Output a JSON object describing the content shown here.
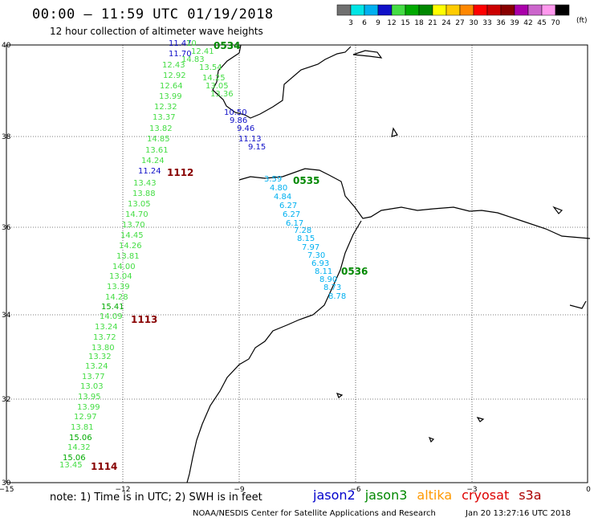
{
  "title": "00:00 – 11:59 UTC 01/19/2018",
  "subtitle": "12 hour collection of altimeter wave heights",
  "note": "note: 1) Time is in UTC; 2) SWH is in feet",
  "credit": "NOAA/NESDIS Center for Satellite Applications and Research",
  "timestamp": "Jan 20 13:27:16 UTC 2018",
  "scale": {
    "unit": "(ft)",
    "bins": [
      {
        "label": "3",
        "color": "#707070"
      },
      {
        "label": "6",
        "color": "#00e5e5"
      },
      {
        "label": "9",
        "color": "#00b0f0"
      },
      {
        "label": "12",
        "color": "#1010c8"
      },
      {
        "label": "15",
        "color": "#44dd44"
      },
      {
        "label": "18",
        "color": "#00aa00"
      },
      {
        "label": "21",
        "color": "#008800"
      },
      {
        "label": "24",
        "color": "#ffff00"
      },
      {
        "label": "27",
        "color": "#ffcc00"
      },
      {
        "label": "30",
        "color": "#ff8800"
      },
      {
        "label": "33",
        "color": "#ff0000"
      },
      {
        "label": "36",
        "color": "#cc0000"
      },
      {
        "label": "39",
        "color": "#880000"
      },
      {
        "label": "42",
        "color": "#aa00aa"
      },
      {
        "label": "45",
        "color": "#cc66cc"
      },
      {
        "label": "70",
        "color": "#ff99ee"
      },
      {
        "label": "",
        "color": "#000000"
      }
    ]
  },
  "satellites": [
    {
      "name": "jason2",
      "color": "#0000cc"
    },
    {
      "name": "jason3",
      "color": "#008800"
    },
    {
      "name": "altika",
      "color": "#ff9900"
    },
    {
      "name": "cryosat",
      "color": "#dd0000"
    },
    {
      "name": "s3a",
      "color": "#aa0000"
    }
  ],
  "axes": {
    "lon_ticks": [
      "−15",
      "−12",
      "−9",
      "−6",
      "−3",
      "0"
    ],
    "lat_ticks": [
      "40",
      "38",
      "36",
      "34",
      "32",
      "30"
    ]
  },
  "time_labels": [
    {
      "text": "0534",
      "color": "#008800"
    },
    {
      "text": "1112",
      "color": "#880000"
    },
    {
      "text": "0535",
      "color": "#008800"
    },
    {
      "text": "0536",
      "color": "#008800"
    },
    {
      "text": "1113",
      "color": "#880000"
    },
    {
      "text": "1114",
      "color": "#880000"
    }
  ],
  "tracks": [
    {
      "name": "jason3-west-track",
      "points": [
        {
          "v": "11.47",
          "c": "#1010c8"
        },
        {
          "v": "10",
          "c": "#44dd44"
        },
        {
          "v": "12.41",
          "c": "#44dd44"
        },
        {
          "v": "11.70",
          "c": "#1010c8"
        },
        {
          "v": "14.83",
          "c": "#44dd44"
        },
        {
          "v": "12.43",
          "c": "#44dd44"
        },
        {
          "v": "13.54",
          "c": "#44dd44"
        },
        {
          "v": "12.92",
          "c": "#44dd44"
        },
        {
          "v": "14.25",
          "c": "#44dd44"
        },
        {
          "v": "12.64",
          "c": "#44dd44"
        },
        {
          "v": "13.05",
          "c": "#44dd44"
        },
        {
          "v": "13.99",
          "c": "#44dd44"
        },
        {
          "v": "13.36",
          "c": "#44dd44"
        },
        {
          "v": "12.32",
          "c": "#44dd44"
        },
        {
          "v": "13.37",
          "c": "#44dd44"
        },
        {
          "v": "13.82",
          "c": "#44dd44"
        },
        {
          "v": "14.85",
          "c": "#44dd44"
        },
        {
          "v": "13.61",
          "c": "#44dd44"
        },
        {
          "v": "14.24",
          "c": "#44dd44"
        },
        {
          "v": "11.24",
          "c": "#1010c8"
        },
        {
          "v": "13.43",
          "c": "#44dd44"
        },
        {
          "v": "13.88",
          "c": "#44dd44"
        },
        {
          "v": "13.05",
          "c": "#44dd44"
        },
        {
          "v": "14.70",
          "c": "#44dd44"
        },
        {
          "v": "13.70",
          "c": "#44dd44"
        },
        {
          "v": "14.45",
          "c": "#44dd44"
        },
        {
          "v": "14.26",
          "c": "#44dd44"
        },
        {
          "v": "13.81",
          "c": "#44dd44"
        },
        {
          "v": "14.00",
          "c": "#44dd44"
        },
        {
          "v": "13.04",
          "c": "#44dd44"
        },
        {
          "v": "13.39",
          "c": "#44dd44"
        },
        {
          "v": "14.28",
          "c": "#44dd44"
        },
        {
          "v": "15.41",
          "c": "#00aa00"
        },
        {
          "v": "14.09",
          "c": "#44dd44"
        },
        {
          "v": "13.24",
          "c": "#44dd44"
        },
        {
          "v": "13.72",
          "c": "#44dd44"
        },
        {
          "v": "13.80",
          "c": "#44dd44"
        },
        {
          "v": "13.32",
          "c": "#44dd44"
        },
        {
          "v": "13.24",
          "c": "#44dd44"
        },
        {
          "v": "13.77",
          "c": "#44dd44"
        },
        {
          "v": "13.03",
          "c": "#44dd44"
        },
        {
          "v": "13.95",
          "c": "#44dd44"
        },
        {
          "v": "13.99",
          "c": "#44dd44"
        },
        {
          "v": "12.97",
          "c": "#44dd44"
        },
        {
          "v": "13.81",
          "c": "#44dd44"
        },
        {
          "v": "15.06",
          "c": "#00aa00"
        },
        {
          "v": "14.32",
          "c": "#44dd44"
        },
        {
          "v": "15.06",
          "c": "#00aa00"
        },
        {
          "v": "13.45",
          "c": "#44dd44"
        }
      ]
    },
    {
      "name": "strait-track",
      "points": [
        {
          "v": "10.50",
          "c": "#1010c8"
        },
        {
          "v": "9.86",
          "c": "#1010c8"
        },
        {
          "v": "9.46",
          "c": "#1010c8"
        },
        {
          "v": "11.13",
          "c": "#1010c8"
        },
        {
          "v": "9.15",
          "c": "#1010c8"
        }
      ]
    },
    {
      "name": "morocco-coastal-track",
      "points": [
        {
          "v": "3.59",
          "c": "#00b0f0"
        },
        {
          "v": "4.80",
          "c": "#00b0f0"
        },
        {
          "v": "4.84",
          "c": "#00b0f0"
        },
        {
          "v": "6.27",
          "c": "#00b0f0"
        },
        {
          "v": "6.27",
          "c": "#00b0f0"
        },
        {
          "v": "6.17",
          "c": "#00b0f0"
        },
        {
          "v": "7.28",
          "c": "#00b0f0"
        },
        {
          "v": "8.15",
          "c": "#00b0f0"
        },
        {
          "v": "7.97",
          "c": "#00b0f0"
        },
        {
          "v": "7.30",
          "c": "#00b0f0"
        },
        {
          "v": "6.93",
          "c": "#00b0f0"
        },
        {
          "v": "8.11",
          "c": "#00b0f0"
        },
        {
          "v": "8.90",
          "c": "#00b0f0"
        },
        {
          "v": "8.73",
          "c": "#00b0f0"
        },
        {
          "v": "8.78",
          "c": "#00b0f0"
        }
      ]
    }
  ]
}
